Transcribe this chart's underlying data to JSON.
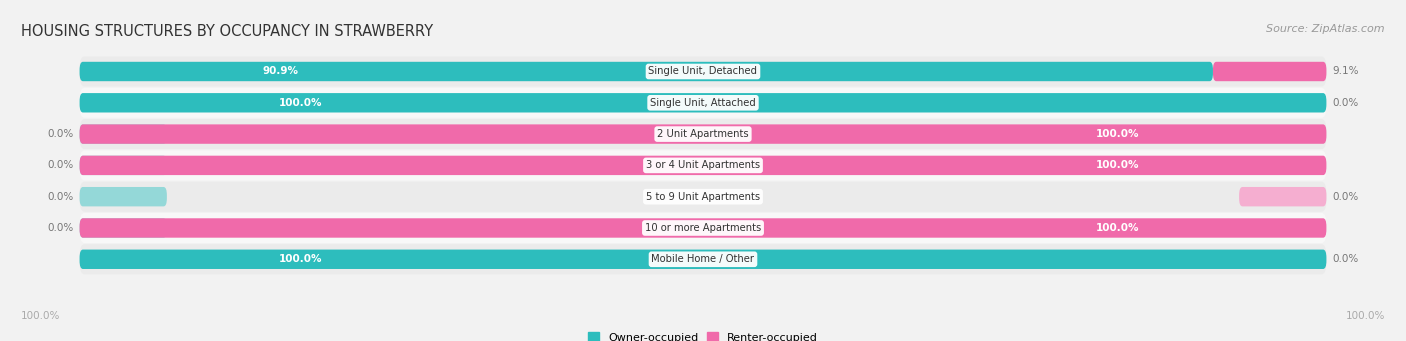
{
  "title": "HOUSING STRUCTURES BY OCCUPANCY IN STRAWBERRY",
  "source": "Source: ZipAtlas.com",
  "categories": [
    "Single Unit, Detached",
    "Single Unit, Attached",
    "2 Unit Apartments",
    "3 or 4 Unit Apartments",
    "5 to 9 Unit Apartments",
    "10 or more Apartments",
    "Mobile Home / Other"
  ],
  "owner_pct": [
    90.9,
    100.0,
    0.0,
    0.0,
    0.0,
    0.0,
    100.0
  ],
  "renter_pct": [
    9.1,
    0.0,
    100.0,
    100.0,
    0.0,
    100.0,
    0.0
  ],
  "owner_color": "#2dbdbd",
  "renter_color": "#f06aaa",
  "owner_color_light": "#94d8d8",
  "renter_color_light": "#f5aed0",
  "row_bg_colors": [
    "#ebebeb",
    "#f8f8f8"
  ],
  "label_bg_color": "#ffffff",
  "title_color": "#333333",
  "source_color": "#999999",
  "value_label_color_white": "#ffffff",
  "value_label_color_dark": "#777777",
  "axis_label_color": "#aaaaaa",
  "figsize": [
    14.06,
    3.41
  ],
  "dpi": 100
}
